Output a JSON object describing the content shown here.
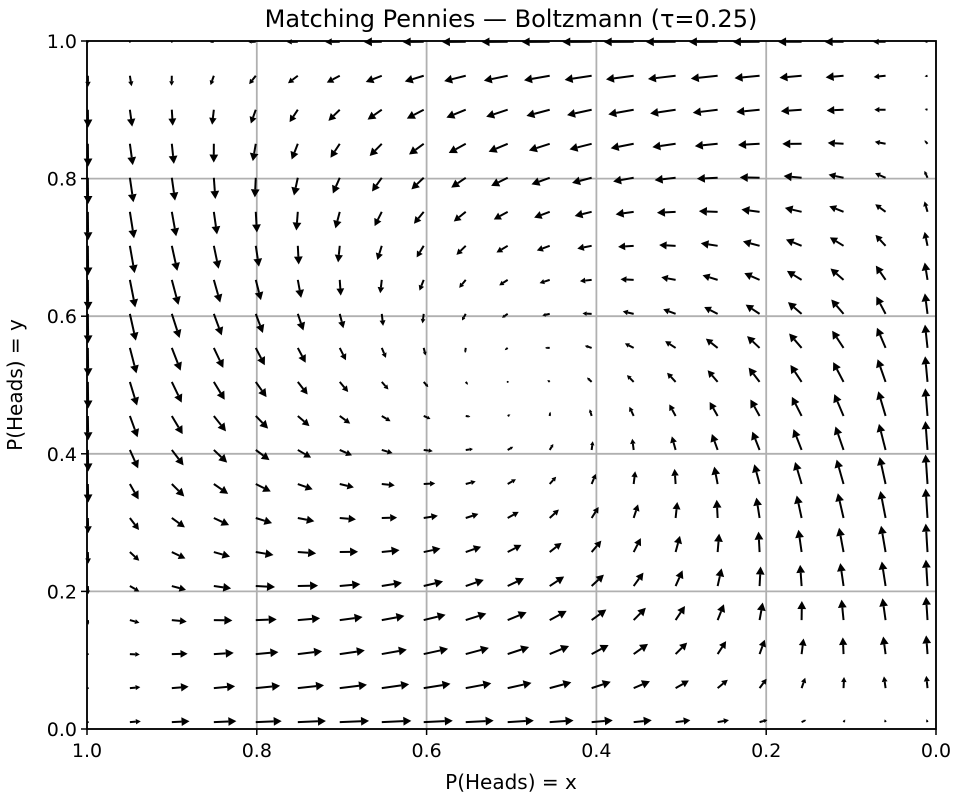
{
  "chart_data": {
    "type": "quiver",
    "title": "Matching Pennies — Boltzmann (τ=0.25)",
    "xlabel": "P(Heads) = x",
    "ylabel": "P(Heads) = y",
    "xlim": [
      1.0,
      0.0
    ],
    "ylim": [
      0.0,
      1.0
    ],
    "x_inverted": true,
    "grid": true,
    "xticks": [
      "1.0",
      "0.8",
      "0.6",
      "0.4",
      "0.2",
      "0.0"
    ],
    "yticks": [
      "0.0",
      "0.2",
      "0.4",
      "0.6",
      "0.8",
      "1.0"
    ],
    "xtick_values": [
      1.0,
      0.8,
      0.6,
      0.4,
      0.2,
      0.0
    ],
    "ytick_values": [
      0.0,
      0.2,
      0.4,
      0.6,
      0.8,
      1.0
    ],
    "grid_x": [
      0.01,
      0.0594,
      0.1089,
      0.1583,
      0.2078,
      0.2572,
      0.3067,
      0.3561,
      0.4056,
      0.455,
      0.5045,
      0.5539,
      0.6034,
      0.6528,
      0.7023,
      0.7517,
      0.8012,
      0.8506,
      0.9001,
      0.9495,
      0.999
    ],
    "grid_y": [
      0.01,
      0.0594,
      0.1089,
      0.1583,
      0.2078,
      0.2572,
      0.3067,
      0.3561,
      0.4056,
      0.455,
      0.5045,
      0.5539,
      0.6034,
      0.6528,
      0.7023,
      0.7517,
      0.8012,
      0.8506,
      0.9001,
      0.9495,
      0.999
    ],
    "vector_field": "dx = x(1-x)(2.5(2y-1)-ln(x/(1-x))), dy = y(1-y)(-2.5(2x-1)-ln(y/(1-y)))",
    "fixed_point": [
      0.5,
      0.5
    ],
    "arrow_color": "#000000",
    "grid_color": "#b0b0b0"
  }
}
